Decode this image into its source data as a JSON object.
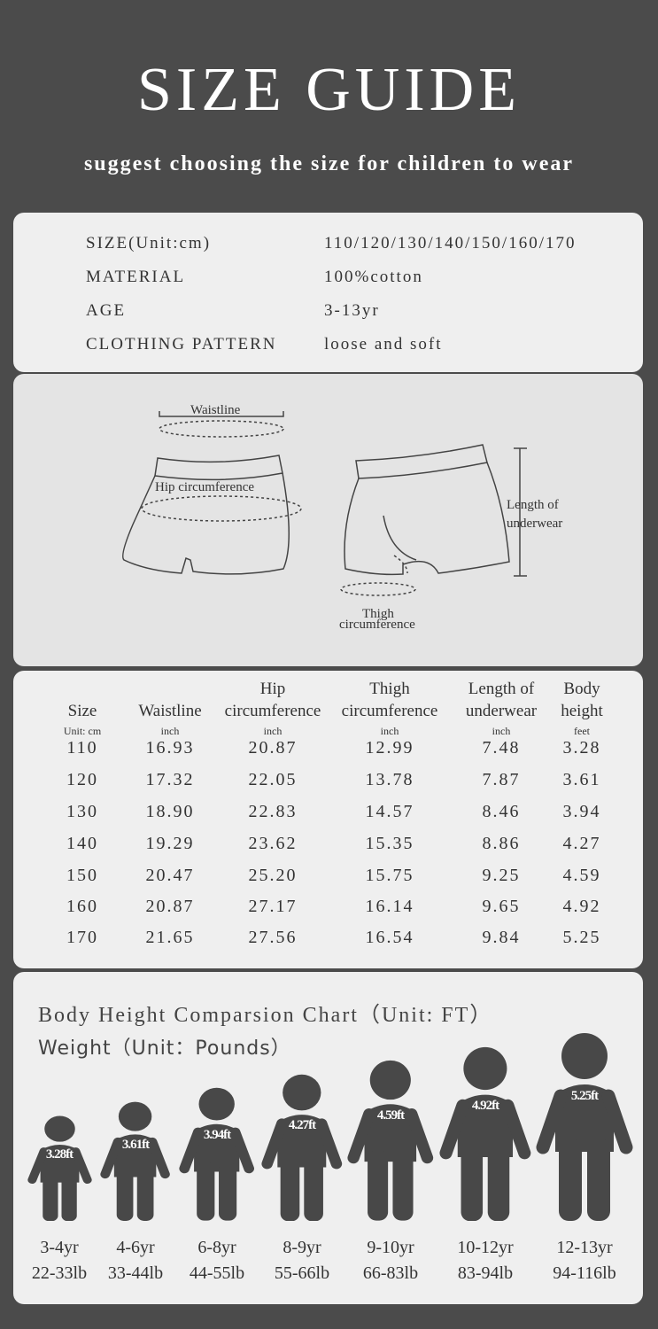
{
  "header": {
    "title": "SIZE GUIDE",
    "subtitle": "suggest choosing the size for children to wear"
  },
  "specs": [
    {
      "label": "SIZE(Unit:cm)",
      "value": "110/120/130/140/150/160/170"
    },
    {
      "label": "MATERIAL",
      "value": "100%cotton"
    },
    {
      "label": "AGE",
      "value": "3-13yr"
    },
    {
      "label": "CLOTHING PATTERN",
      "value": "loose and soft"
    }
  ],
  "diagram": {
    "waistline": "Waistline",
    "hip": "Hip circumference",
    "length_1": "Length of",
    "length_2": "underwear",
    "thigh_1": "Thigh",
    "thigh_2": "circumference"
  },
  "table": {
    "headers": [
      {
        "l1": "",
        "l2": "Size",
        "unit": "Unit: cm"
      },
      {
        "l1": "",
        "l2": "Waistline",
        "unit": "inch"
      },
      {
        "l1": "Hip",
        "l2": "circumference",
        "unit": "inch"
      },
      {
        "l1": "Thigh",
        "l2": "circumference",
        "unit": "inch"
      },
      {
        "l1": "Length of",
        "l2": "underwear",
        "unit": "inch"
      },
      {
        "l1": "Body",
        "l2": "height",
        "unit": "feet"
      }
    ],
    "rows": [
      [
        "110",
        "16.93",
        "20.87",
        "12.99",
        "7.48",
        "3.28"
      ],
      [
        "120",
        "17.32",
        "22.05",
        "13.78",
        "7.87",
        "3.61"
      ],
      [
        "130",
        "18.90",
        "22.83",
        "14.57",
        "8.46",
        "3.94"
      ],
      [
        "140",
        "19.29",
        "23.62",
        "15.35",
        "8.86",
        "4.27"
      ],
      [
        "150",
        "20.47",
        "25.20",
        "15.75",
        "9.25",
        "4.59"
      ],
      [
        "160",
        "20.87",
        "27.17",
        "16.14",
        "9.65",
        "4.92"
      ],
      [
        "170",
        "21.65",
        "27.56",
        "16.54",
        "9.84",
        "5.25"
      ]
    ]
  },
  "height_chart": {
    "title": "Body Height Comparsion Chart（Unit: FT）",
    "subtitle": "Weight（Unit：Pounds）",
    "figure_color": "#484848",
    "figures": [
      {
        "height_ft": 3.28,
        "label": "3.28ft",
        "age": "3-4yr",
        "weight": "22-33lb"
      },
      {
        "height_ft": 3.61,
        "label": "3.61ft",
        "age": "4-6yr",
        "weight": "33-44lb"
      },
      {
        "height_ft": 3.94,
        "label": "3.94ft",
        "age": "6-8yr",
        "weight": "44-55lb"
      },
      {
        "height_ft": 4.27,
        "label": "4.27ft",
        "age": "8-9yr",
        "weight": "55-66lb"
      },
      {
        "height_ft": 4.59,
        "label": "4.59ft",
        "age": "9-10yr",
        "weight": "66-83lb"
      },
      {
        "height_ft": 4.92,
        "label": "4.92ft",
        "age": "10-12yr",
        "weight": "83-94lb"
      },
      {
        "height_ft": 5.25,
        "label": "5.25ft",
        "age": "12-13yr",
        "weight": "94-116lb"
      }
    ]
  }
}
